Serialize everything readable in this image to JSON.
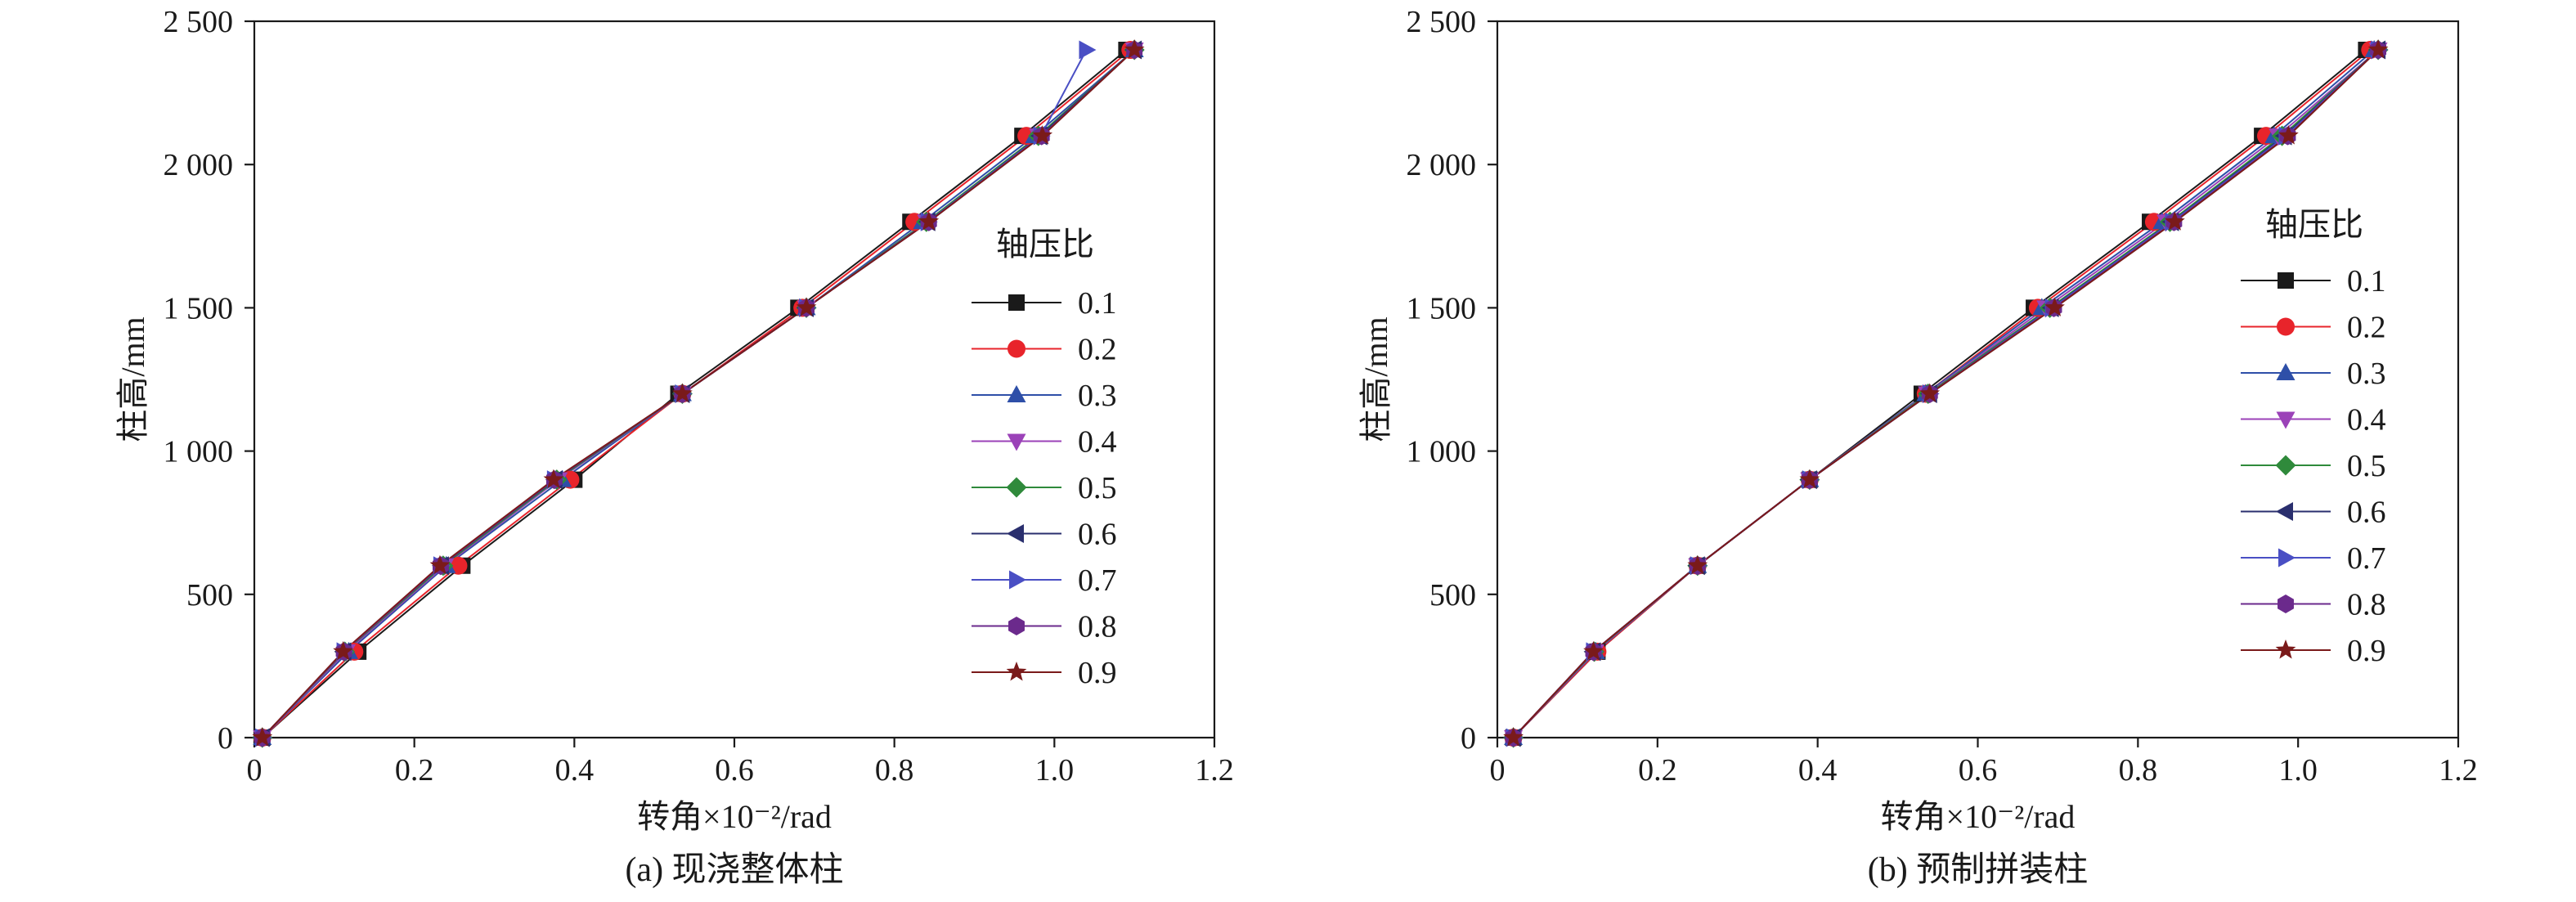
{
  "chart_data": [
    {
      "type": "line",
      "caption": "(a) 现浇整体柱",
      "xlabel": "转角×10⁻²/rad",
      "ylabel": "柱高/mm",
      "xlim": [
        0,
        1.2
      ],
      "ylim": [
        0,
        2500
      ],
      "xticks": [
        "0",
        "0.2",
        "0.4",
        "0.6",
        "0.8",
        "1.0",
        "1.2"
      ],
      "yticks": [
        "0",
        "500",
        "1 000",
        "1 500",
        "2 000",
        "2 500"
      ],
      "legend_title": "轴压比",
      "legend_position": "center-right",
      "grid": false,
      "y": [
        0,
        300,
        600,
        900,
        1200,
        1500,
        1800,
        2100,
        2400
      ],
      "series": [
        {
          "name": "0.1",
          "color": "#1a1a1a",
          "marker": "square",
          "x": [
            0.01,
            0.13,
            0.26,
            0.4,
            0.53,
            0.68,
            0.82,
            0.96,
            1.09
          ]
        },
        {
          "name": "0.2",
          "color": "#e8242b",
          "marker": "circle",
          "x": [
            0.01,
            0.125,
            0.255,
            0.395,
            0.535,
            0.685,
            0.825,
            0.965,
            1.095
          ]
        },
        {
          "name": "0.3",
          "color": "#2e4fa8",
          "marker": "triangle-up",
          "x": [
            0.01,
            0.118,
            0.24,
            0.385,
            0.535,
            0.69,
            0.835,
            0.975,
            1.1
          ]
        },
        {
          "name": "0.4",
          "color": "#9b42b8",
          "marker": "triangle-down",
          "x": [
            0.01,
            0.115,
            0.238,
            0.38,
            0.535,
            0.69,
            0.84,
            0.98,
            1.1
          ]
        },
        {
          "name": "0.5",
          "color": "#2f8a3b",
          "marker": "diamond",
          "x": [
            0.01,
            0.113,
            0.236,
            0.378,
            0.535,
            0.69,
            0.84,
            0.98,
            1.1
          ]
        },
        {
          "name": "0.6",
          "color": "#2a2f6e",
          "marker": "triangle-left",
          "x": [
            0.01,
            0.112,
            0.234,
            0.376,
            0.535,
            0.69,
            0.842,
            0.982,
            1.1
          ]
        },
        {
          "name": "0.7",
          "color": "#4a4fc4",
          "marker": "triangle-right",
          "x": [
            0.01,
            0.112,
            0.233,
            0.375,
            0.535,
            0.69,
            0.842,
            0.983,
            1.04
          ]
        },
        {
          "name": "0.8",
          "color": "#6b2a8c",
          "marker": "hexagon",
          "x": [
            0.01,
            0.112,
            0.233,
            0.375,
            0.535,
            0.69,
            0.843,
            0.984,
            1.1
          ]
        },
        {
          "name": "0.9",
          "color": "#7a1a1a",
          "marker": "star",
          "x": [
            0.01,
            0.111,
            0.232,
            0.374,
            0.535,
            0.69,
            0.843,
            0.985,
            1.1
          ]
        }
      ]
    },
    {
      "type": "line",
      "caption": "(b) 预制拼装柱",
      "xlabel": "转角×10⁻²/rad",
      "ylabel": "柱高/mm",
      "xlim": [
        0,
        1.2
      ],
      "ylim": [
        0,
        2500
      ],
      "xticks": [
        "0",
        "0.2",
        "0.4",
        "0.6",
        "0.8",
        "1.0",
        "1.2"
      ],
      "yticks": [
        "0",
        "500",
        "1 000",
        "1 500",
        "2 000",
        "2 500"
      ],
      "legend_title": "轴压比",
      "legend_position": "right",
      "grid": false,
      "y": [
        0,
        300,
        600,
        900,
        1200,
        1500,
        1800,
        2100,
        2400
      ],
      "series": [
        {
          "name": "0.1",
          "color": "#1a1a1a",
          "marker": "square",
          "x": [
            0.02,
            0.125,
            0.25,
            0.39,
            0.53,
            0.67,
            0.815,
            0.955,
            1.085
          ]
        },
        {
          "name": "0.2",
          "color": "#e8242b",
          "marker": "circle",
          "x": [
            0.02,
            0.125,
            0.25,
            0.39,
            0.535,
            0.675,
            0.82,
            0.96,
            1.09
          ]
        },
        {
          "name": "0.3",
          "color": "#2e4fa8",
          "marker": "triangle-up",
          "x": [
            0.02,
            0.123,
            0.25,
            0.39,
            0.535,
            0.68,
            0.83,
            0.97,
            1.095
          ]
        },
        {
          "name": "0.4",
          "color": "#9b42b8",
          "marker": "triangle-down",
          "x": [
            0.02,
            0.122,
            0.25,
            0.39,
            0.537,
            0.685,
            0.835,
            0.975,
            1.1
          ]
        },
        {
          "name": "0.5",
          "color": "#2f8a3b",
          "marker": "diamond",
          "x": [
            0.02,
            0.121,
            0.25,
            0.39,
            0.538,
            0.69,
            0.84,
            0.98,
            1.1
          ]
        },
        {
          "name": "0.6",
          "color": "#2a2f6e",
          "marker": "triangle-left",
          "x": [
            0.02,
            0.12,
            0.25,
            0.39,
            0.54,
            0.692,
            0.842,
            0.983,
            1.1
          ]
        },
        {
          "name": "0.7",
          "color": "#4a4fc4",
          "marker": "triangle-right",
          "x": [
            0.02,
            0.12,
            0.25,
            0.39,
            0.54,
            0.693,
            0.843,
            0.985,
            1.1
          ]
        },
        {
          "name": "0.8",
          "color": "#6b2a8c",
          "marker": "hexagon",
          "x": [
            0.02,
            0.12,
            0.25,
            0.39,
            0.54,
            0.695,
            0.845,
            0.987,
            1.1
          ]
        },
        {
          "name": "0.9",
          "color": "#7a1a1a",
          "marker": "star",
          "x": [
            0.02,
            0.12,
            0.25,
            0.39,
            0.54,
            0.696,
            0.846,
            0.988,
            1.1
          ]
        }
      ]
    }
  ]
}
